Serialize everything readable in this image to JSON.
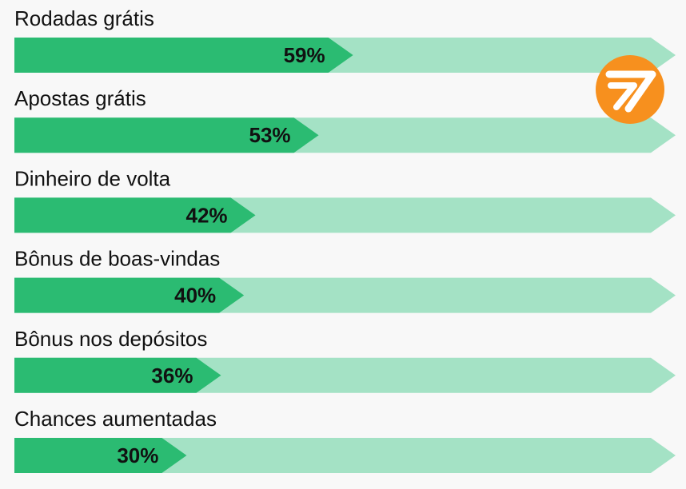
{
  "chart_data": {
    "type": "bar",
    "orientation": "horizontal",
    "categories": [
      "Rodadas grátis",
      "Apostas grátis",
      "Dinheiro de volta",
      "Bônus de boas-vindas",
      "Bônus nos depósitos",
      "Chances aumentadas"
    ],
    "values": [
      59,
      53,
      42,
      40,
      36,
      30
    ],
    "value_labels": [
      "59%",
      "53%",
      "42%",
      "40%",
      "36%",
      "30%"
    ],
    "unit": "%",
    "xlim": [
      0,
      100
    ],
    "grid": false,
    "legend": "none"
  },
  "colors": {
    "bar_fill": "#2bbb72",
    "bar_track": "#a4e2c5",
    "background": "#f8f8f8",
    "logo_circle": "#f7901e",
    "logo_mark": "#ffffff",
    "text": "#111111"
  },
  "logo": {
    "icon": "brand-logo-icon"
  }
}
